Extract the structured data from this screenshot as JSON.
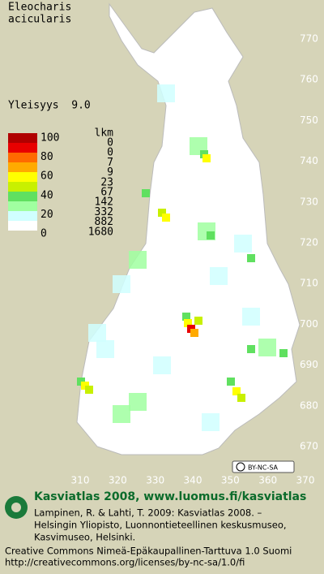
{
  "title": [
    "Eleocharis",
    "acicularis"
  ],
  "frequency": "Yleisyys  9.0",
  "legend": {
    "levels": [
      100,
      80,
      60,
      40,
      20,
      0
    ],
    "count_header": "lkm",
    "counts": [
      0,
      0,
      7,
      9,
      23,
      67,
      142,
      332,
      882,
      1680
    ],
    "colors": [
      "#b00000",
      "#e80000",
      "#ff6a00",
      "#ffaa00",
      "#ffff00",
      "#c8f000",
      "#60e060",
      "#a0ffa0",
      "#d0ffff",
      "#ffffff"
    ]
  },
  "axes": {
    "y_ticks": [
      770,
      760,
      750,
      740,
      730,
      720,
      710,
      700,
      690,
      680,
      670
    ],
    "x_ticks": [
      310,
      320,
      330,
      340,
      350,
      360,
      370
    ]
  },
  "license_badge": "BY-NC-SA",
  "footer": {
    "heading": "Kasviatlas 2008, www.luomus.fi/kasviatlas",
    "citation": [
      "Lampinen, R. & Lahti, T. 2009: Kasviatlas 2008. –",
      "Helsingin Yliopisto, Luonnontieteellinen keskusmuseo,",
      "Kasvimuseo, Helsinki."
    ],
    "license": [
      "Creative Commons Nimeä-Epäkaupallinen-Tarttuva 1.0 Suomi",
      "http://creativecommons.org/licenses/by-nc-sa/1.0/fi"
    ]
  }
}
